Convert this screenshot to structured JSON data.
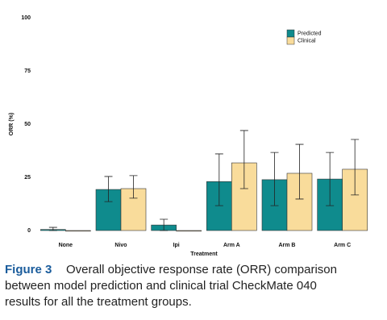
{
  "chart_data": {
    "type": "bar",
    "x_label": "Treatment",
    "y_label": "ORR (%)",
    "categories": [
      "None",
      "Nivo",
      "Ipi",
      "Arm A",
      "Arm B",
      "Arm C"
    ],
    "series": [
      {
        "name": "Predicted",
        "color": "#0f8b8d",
        "values": [
          0.5,
          19.3,
          2.6,
          23,
          23.9,
          24.2
        ],
        "lower": [
          0,
          13.6,
          0,
          11.7,
          11.7,
          11.7
        ],
        "upper": [
          1.5,
          25.4,
          5.3,
          36,
          36.7,
          36.7
        ]
      },
      {
        "name": "Clinical",
        "color": "#f9dc9b",
        "values": [
          0,
          19.7,
          0,
          31.8,
          26.9,
          28.8
        ],
        "lower": [
          null,
          15.2,
          null,
          19.7,
          14.8,
          16.7
        ],
        "upper": [
          null,
          25.8,
          null,
          47,
          40.5,
          42.8
        ]
      }
    ],
    "ylim": [
      0,
      100
    ],
    "yticks": [
      0,
      25,
      50,
      75,
      100
    ],
    "grid": false,
    "legend": "upper right",
    "caption": {
      "label": "Figure 3",
      "lines": [
        "Overall objective response rate (ORR) comparison",
        "between model prediction and clinical trial CheckMate 040",
        "results for all the treatment groups."
      ]
    }
  }
}
